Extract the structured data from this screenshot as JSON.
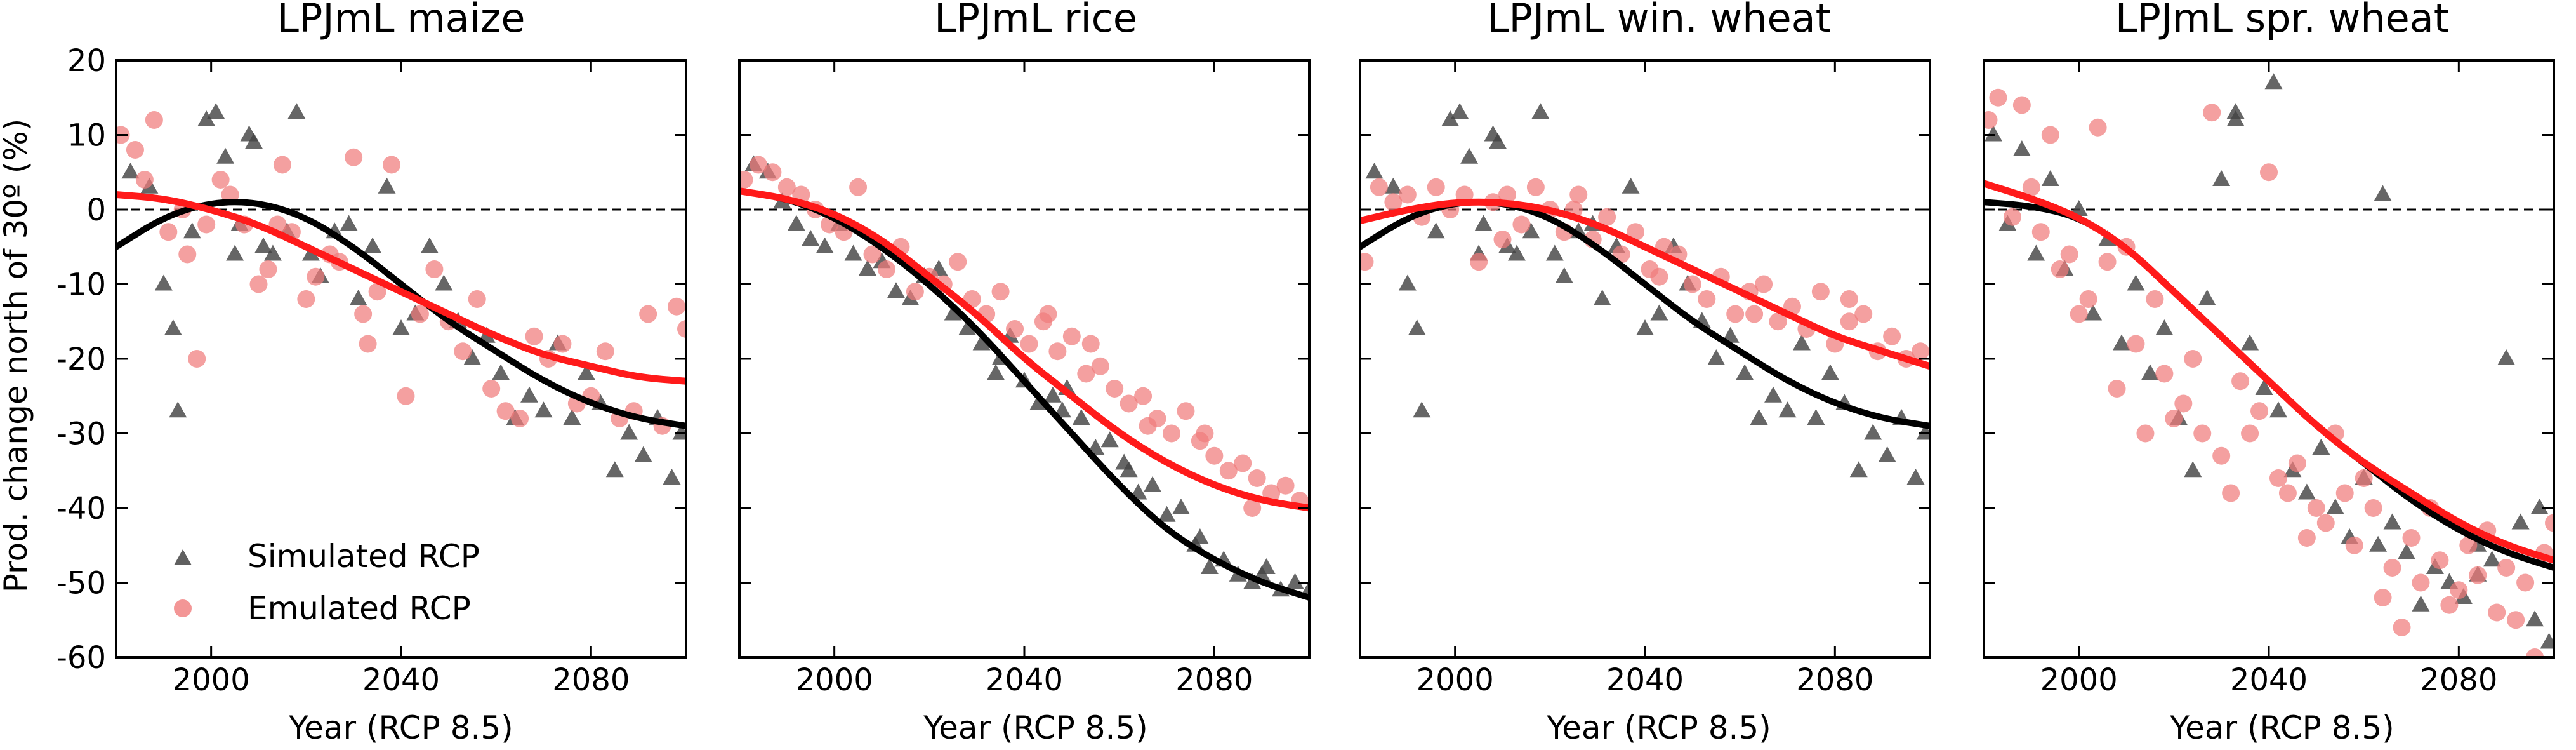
{
  "chart_data": {
    "type": "scatter",
    "ylabel": "Prod. change north of 30º (%)",
    "xlabel": "Year (RCP 8.5)",
    "xlim": [
      1980,
      2100
    ],
    "ylim": [
      -60,
      20
    ],
    "xticks": [
      2000,
      2040,
      2080
    ],
    "yticks": [
      20,
      10,
      0,
      -10,
      -20,
      -30,
      -40,
      -50,
      -60
    ],
    "reference_line": 0,
    "legend": {
      "position": "lower-left",
      "entries": [
        "Simulated RCP",
        "Emulated RCP"
      ]
    },
    "colors": {
      "simulated": "#444444",
      "emulated": "#f07c7c",
      "sim_fit": "#000000",
      "emu_fit": "#ff1a1a"
    },
    "panels": [
      {
        "title": "LPJmL maize",
        "sim_fit": {
          "x": [
            1980,
            1990,
            2000,
            2010,
            2020,
            2030,
            2040,
            2050,
            2060,
            2070,
            2080,
            2090,
            2100
          ],
          "y": [
            -5,
            -1,
            1,
            1,
            -1,
            -5,
            -10,
            -15,
            -19,
            -23,
            -26,
            -28,
            -29
          ]
        },
        "emu_fit": {
          "x": [
            1980,
            1990,
            2000,
            2010,
            2020,
            2030,
            2040,
            2050,
            2060,
            2070,
            2080,
            2090,
            2100
          ],
          "y": [
            2,
            1.5,
            0,
            -2,
            -5,
            -8,
            -11,
            -14,
            -17,
            -19.5,
            -21,
            -22.5,
            -23
          ]
        },
        "simulated": {
          "x": [
            1983,
            1987,
            1990,
            1993,
            1996,
            1999,
            2001,
            2003,
            2006,
            2008,
            2011,
            2013,
            2016,
            2018,
            2021,
            2023,
            2026,
            2029,
            2031,
            2034,
            2037,
            2040,
            2043,
            2046,
            2049,
            2052,
            2055,
            2058,
            2061,
            2064,
            2067,
            2070,
            2073,
            2076,
            2079,
            2082,
            2085,
            2088,
            2091,
            2094,
            2097,
            2099,
            1992,
            2009,
            2005
          ],
          "y": [
            5,
            3,
            -10,
            -27,
            -3,
            12,
            13,
            7,
            -2,
            10,
            -5,
            -6,
            -3,
            13,
            -6,
            -9,
            -3,
            -2,
            -12,
            -5,
            3,
            -16,
            -14,
            -5,
            -10,
            -15,
            -20,
            -17,
            -22,
            -28,
            -25,
            -27,
            -18,
            -28,
            -22,
            -26,
            -35,
            -30,
            -33,
            -28,
            -36,
            -30,
            -16,
            9,
            -6
          ]
        },
        "emulated": {
          "x": [
            1981,
            1984,
            1986,
            1988,
            1991,
            1994,
            1997,
            1999,
            2002,
            2004,
            2007,
            2010,
            2012,
            2015,
            2017,
            2020,
            2022,
            2025,
            2027,
            2030,
            2032,
            2035,
            2038,
            2041,
            2044,
            2047,
            2050,
            2053,
            2056,
            2059,
            2062,
            2065,
            2068,
            2071,
            2074,
            2077,
            2080,
            2083,
            2086,
            2089,
            2092,
            2095,
            2098,
            2100,
            1995,
            2014,
            2033
          ],
          "y": [
            10,
            8,
            4,
            12,
            -3,
            0,
            -20,
            -2,
            4,
            2,
            -2,
            -10,
            -8,
            6,
            -3,
            -12,
            -9,
            -6,
            -7,
            7,
            -14,
            -11,
            6,
            -25,
            -14,
            -8,
            -15,
            -19,
            -12,
            -24,
            -27,
            -28,
            -17,
            -20,
            -18,
            -26,
            -25,
            -19,
            -28,
            -27,
            -14,
            -29,
            -13,
            -16,
            -6,
            -2,
            -18
          ]
        }
      },
      {
        "title": "LPJmL rice",
        "sim_fit": {
          "x": [
            1980,
            1990,
            2000,
            2010,
            2020,
            2030,
            2040,
            2050,
            2060,
            2070,
            2080,
            2090,
            2100
          ],
          "y": [
            2.5,
            1.5,
            -1,
            -5,
            -10,
            -16,
            -23,
            -30,
            -37,
            -43,
            -47,
            -50,
            -52
          ]
        },
        "emu_fit": {
          "x": [
            1980,
            1990,
            2000,
            2010,
            2020,
            2030,
            2040,
            2050,
            2060,
            2070,
            2080,
            2090,
            2100
          ],
          "y": [
            2.5,
            1.5,
            -0.5,
            -4,
            -9,
            -14,
            -20,
            -25,
            -30,
            -34,
            -37,
            -39,
            -40
          ]
        },
        "simulated": {
          "x": [
            1983,
            1986,
            1989,
            1992,
            1995,
            1998,
            2001,
            2004,
            2007,
            2010,
            2013,
            2016,
            2019,
            2022,
            2025,
            2028,
            2031,
            2034,
            2037,
            2040,
            2043,
            2046,
            2049,
            2052,
            2055,
            2058,
            2061,
            2064,
            2067,
            2070,
            2073,
            2076,
            2079,
            2082,
            2085,
            2088,
            2091,
            2094,
            2097,
            2100,
            2035,
            2048,
            2062,
            2077,
            2090
          ],
          "y": [
            6,
            5,
            1,
            -2,
            -4,
            -5,
            -2,
            -6,
            -8,
            -7,
            -11,
            -12,
            -9,
            -8,
            -14,
            -16,
            -18,
            -22,
            -17,
            -23,
            -26,
            -25,
            -24,
            -28,
            -32,
            -31,
            -34,
            -38,
            -37,
            -41,
            -40,
            -45,
            -48,
            -47,
            -49,
            -50,
            -48,
            -51,
            -50,
            -51,
            -20,
            -27,
            -35,
            -44,
            -49
          ]
        },
        "emulated": {
          "x": [
            1981,
            1984,
            1987,
            1990,
            1993,
            1996,
            1999,
            2002,
            2005,
            2008,
            2011,
            2014,
            2017,
            2020,
            2023,
            2026,
            2029,
            2032,
            2035,
            2038,
            2041,
            2044,
            2047,
            2050,
            2053,
            2056,
            2059,
            2062,
            2065,
            2068,
            2071,
            2074,
            2077,
            2080,
            2083,
            2086,
            2089,
            2092,
            2095,
            2098,
            2045,
            2054,
            2066,
            2078,
            2088
          ],
          "y": [
            4,
            6,
            5,
            3,
            2,
            0,
            -2,
            -3,
            3,
            -6,
            -8,
            -5,
            -11,
            -9,
            -10,
            -7,
            -12,
            -14,
            -11,
            -16,
            -18,
            -15,
            -19,
            -17,
            -22,
            -21,
            -24,
            -26,
            -25,
            -28,
            -30,
            -27,
            -31,
            -33,
            -35,
            -34,
            -36,
            -38,
            -37,
            -39,
            -14,
            -18,
            -29,
            -30,
            -40
          ]
        }
      },
      {
        "title": "LPJmL win. wheat",
        "sim_fit": {
          "x": [
            1980,
            1990,
            2000,
            2010,
            2020,
            2030,
            2040,
            2050,
            2060,
            2070,
            2080,
            2090,
            2100
          ],
          "y": [
            -5,
            -1,
            1,
            1,
            -1,
            -5,
            -10,
            -15,
            -19,
            -23,
            -26,
            -28,
            -29
          ]
        },
        "emu_fit": {
          "x": [
            1980,
            1990,
            2000,
            2010,
            2020,
            2030,
            2040,
            2050,
            2060,
            2070,
            2080,
            2090,
            2100
          ],
          "y": [
            -1.5,
            0,
            1,
            1,
            0,
            -2,
            -5,
            -8,
            -11,
            -14,
            -17,
            -19,
            -21
          ]
        },
        "simulated": {
          "x": [
            1983,
            1987,
            1990,
            1993,
            1996,
            1999,
            2001,
            2003,
            2006,
            2008,
            2011,
            2013,
            2016,
            2018,
            2021,
            2023,
            2026,
            2029,
            2031,
            2034,
            2037,
            2040,
            2043,
            2046,
            2049,
            2052,
            2055,
            2058,
            2061,
            2064,
            2067,
            2070,
            2073,
            2076,
            2079,
            2082,
            2085,
            2088,
            2091,
            2094,
            2097,
            2099,
            1992,
            2009,
            2005
          ],
          "y": [
            5,
            3,
            -10,
            -27,
            -3,
            12,
            13,
            7,
            -2,
            10,
            -5,
            -6,
            -3,
            13,
            -6,
            -9,
            -3,
            -2,
            -12,
            -5,
            3,
            -16,
            -14,
            -5,
            -10,
            -15,
            -20,
            -17,
            -22,
            -28,
            -25,
            -27,
            -18,
            -28,
            -22,
            -26,
            -35,
            -30,
            -33,
            -28,
            -36,
            -30,
            -16,
            9,
            -6
          ]
        },
        "emulated": {
          "x": [
            1981,
            1984,
            1987,
            1990,
            1993,
            1996,
            1999,
            2002,
            2005,
            2008,
            2011,
            2014,
            2017,
            2020,
            2023,
            2026,
            2029,
            2032,
            2035,
            2038,
            2041,
            2044,
            2047,
            2050,
            2053,
            2056,
            2059,
            2062,
            2065,
            2068,
            2071,
            2074,
            2077,
            2080,
            2083,
            2086,
            2089,
            2092,
            2095,
            2098,
            2010,
            2025,
            2043,
            2063,
            2083
          ],
          "y": [
            -7,
            3,
            1,
            2,
            -1,
            3,
            0,
            2,
            -7,
            1,
            2,
            -2,
            3,
            0,
            -3,
            2,
            -4,
            -1,
            -6,
            -3,
            -8,
            -5,
            -6,
            -10,
            -12,
            -9,
            -14,
            -11,
            -10,
            -15,
            -13,
            -16,
            -11,
            -18,
            -15,
            -14,
            -19,
            -17,
            -20,
            -19,
            -4,
            0,
            -9,
            -14,
            -12
          ]
        }
      },
      {
        "title": "LPJmL spr. wheat",
        "sim_fit": {
          "x": [
            1980,
            1990,
            2000,
            2010,
            2020,
            2030,
            2040,
            2050,
            2060,
            2070,
            2080,
            2090,
            2100
          ],
          "y": [
            1,
            0.5,
            -1,
            -5,
            -11,
            -17,
            -23,
            -29,
            -34,
            -39,
            -43,
            -46,
            -48
          ]
        },
        "emu_fit": {
          "x": [
            1980,
            1990,
            2000,
            2010,
            2020,
            2030,
            2040,
            2050,
            2060,
            2070,
            2080,
            2090,
            2100
          ],
          "y": [
            3.5,
            1.5,
            -1,
            -5,
            -11,
            -17,
            -23,
            -29,
            -34,
            -38,
            -42,
            -45,
            -47
          ]
        },
        "simulated": {
          "x": [
            1982,
            1985,
            1988,
            1991,
            1994,
            1997,
            2000,
            2003,
            2006,
            2009,
            2012,
            2015,
            2018,
            2021,
            2024,
            2027,
            2030,
            2033,
            2036,
            2039,
            2042,
            2045,
            2048,
            2051,
            2054,
            2057,
            2060,
            2063,
            2066,
            2069,
            2072,
            2075,
            2078,
            2081,
            2084,
            2087,
            2090,
            2093,
            2096,
            2099,
            2033,
            2041,
            2064,
            2084,
            2097
          ],
          "y": [
            10,
            -2,
            8,
            -6,
            4,
            -8,
            0,
            -14,
            -4,
            -18,
            -10,
            -22,
            -16,
            -28,
            -35,
            -12,
            4,
            12,
            -18,
            -24,
            -27,
            -35,
            -38,
            -32,
            -40,
            -44,
            -36,
            -45,
            -42,
            -46,
            -53,
            -48,
            -50,
            -52,
            -49,
            -47,
            -20,
            -42,
            -55,
            -58,
            13,
            17,
            2,
            -45,
            -40
          ]
        },
        "emulated": {
          "x": [
            1981,
            1983,
            1986,
            1988,
            1990,
            1992,
            1994,
            1996,
            1998,
            2000,
            2002,
            2004,
            2006,
            2008,
            2010,
            2012,
            2014,
            2016,
            2018,
            2020,
            2022,
            2024,
            2026,
            2028,
            2030,
            2032,
            2034,
            2036,
            2038,
            2040,
            2042,
            2044,
            2046,
            2048,
            2050,
            2052,
            2054,
            2056,
            2058,
            2060,
            2062,
            2064,
            2066,
            2068,
            2070,
            2072,
            2074,
            2076,
            2078,
            2080,
            2082,
            2084,
            2086,
            2088,
            2090,
            2092,
            2094,
            2096,
            2098,
            2100
          ],
          "y": [
            12,
            15,
            -1,
            14,
            3,
            -3,
            10,
            -8,
            -6,
            -14,
            -12,
            11,
            -7,
            -24,
            -5,
            -18,
            -30,
            -12,
            -22,
            -28,
            -26,
            -20,
            -30,
            13,
            -33,
            -38,
            -23,
            -30,
            -27,
            5,
            -36,
            -38,
            -34,
            -44,
            -40,
            -42,
            -30,
            -38,
            -45,
            -36,
            -40,
            -52,
            -48,
            -56,
            -44,
            -50,
            -40,
            -47,
            -53,
            -51,
            -45,
            -49,
            -43,
            -54,
            -48,
            -55,
            -50,
            -60,
            -46,
            -42
          ]
        }
      }
    ]
  }
}
